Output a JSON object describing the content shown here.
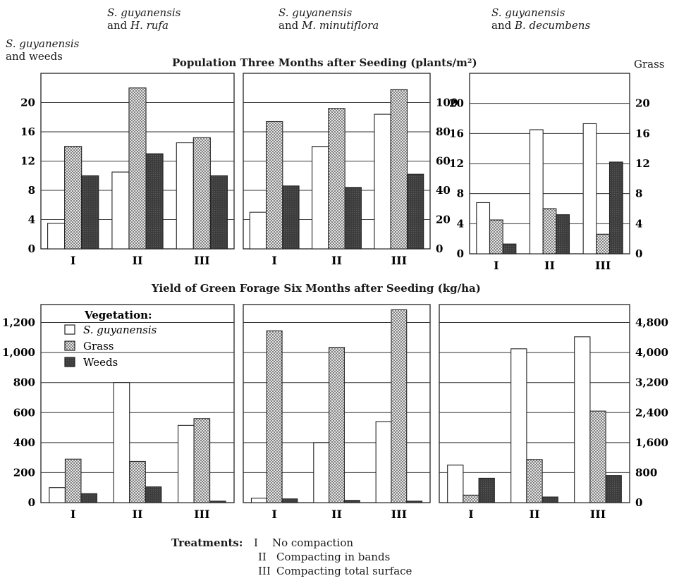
{
  "headers": {
    "panel1": {
      "line1": "S. guyanensis",
      "line2": "and weeds"
    },
    "panel2": {
      "line1": "S. guyanensis",
      "line2_pre": "and ",
      "line2_it": "H. rufa"
    },
    "panel3": {
      "line1": "S. guyanensis",
      "line2_pre": "and ",
      "line2_it": "M. minutiflora"
    },
    "panel4": {
      "line1": "S. guyanensis",
      "line2_pre": "and ",
      "line2_it": "B. decumbens"
    },
    "grass_axis_label": "Grass"
  },
  "top_title": "Population Three Months after Seeding (plants/m²)",
  "bottom_title": "Yield of Green Forage Six Months after Seeding (kg/ha)",
  "legend": {
    "title": "Vegetation:",
    "items": [
      {
        "label": "S. guyanensis",
        "pattern": "white"
      },
      {
        "label": "Grass",
        "pattern": "dotted"
      },
      {
        "label": "Weeds",
        "pattern": "dark"
      }
    ]
  },
  "treatments": {
    "label": "Treatments:",
    "items": [
      {
        "num": "I",
        "text": "No compaction"
      },
      {
        "num": "II",
        "text": "Compacting in bands"
      },
      {
        "num": "III",
        "text": "Compacting total surface"
      }
    ]
  },
  "chart_data": [
    {
      "type": "bar",
      "row": "population",
      "panel": "H. rufa",
      "categories": [
        "I",
        "II",
        "III"
      ],
      "series": [
        {
          "name": "S. guyanensis",
          "values": [
            3.5,
            10.5,
            14.5
          ]
        },
        {
          "name": "Grass",
          "values": [
            14.0,
            22.0,
            15.2
          ]
        },
        {
          "name": "Weeds",
          "values": [
            10.0,
            13.0,
            10.0
          ]
        }
      ],
      "yticks": [
        "0",
        "4",
        "8",
        "12",
        "16",
        "20"
      ],
      "ylim": [
        0,
        24
      ]
    },
    {
      "type": "bar",
      "row": "population",
      "panel": "M. minutiflora",
      "categories": [
        "I",
        "II",
        "III"
      ],
      "series": [
        {
          "name": "S. guyanensis",
          "values": [
            25,
            70,
            92
          ]
        },
        {
          "name": "Grass",
          "values": [
            87,
            96,
            109
          ]
        },
        {
          "name": "Weeds",
          "values": [
            43,
            42,
            51
          ]
        }
      ],
      "yticks": [
        "0",
        "20",
        "40",
        "60",
        "80",
        "100"
      ],
      "ylim": [
        0,
        120
      ]
    },
    {
      "type": "bar",
      "row": "population",
      "panel": "B. decumbens",
      "categories": [
        "I",
        "II",
        "III"
      ],
      "series": [
        {
          "name": "S. guyanensis",
          "values": [
            6.8,
            16.5,
            17.3
          ]
        },
        {
          "name": "Grass",
          "values": [
            4.5,
            6.0,
            2.6
          ]
        },
        {
          "name": "Weeds",
          "values": [
            1.3,
            5.2,
            12.2
          ]
        }
      ],
      "yticks": [
        "0",
        "4",
        "8",
        "12",
        "16",
        "20"
      ],
      "ylim": [
        0,
        24
      ],
      "right_yticks": [
        "0",
        "4",
        "8",
        "12",
        "16",
        "20"
      ]
    },
    {
      "type": "bar",
      "row": "yield",
      "panel": "H. rufa",
      "categories": [
        "I",
        "II",
        "III"
      ],
      "series": [
        {
          "name": "S. guyanensis",
          "values": [
            100,
            800,
            515
          ]
        },
        {
          "name": "Grass",
          "values": [
            290,
            275,
            560
          ]
        },
        {
          "name": "Weeds",
          "values": [
            60,
            105,
            10
          ]
        }
      ],
      "yticks": [
        "0",
        "200",
        "400",
        "600",
        "800",
        "1,000",
        "1,200"
      ],
      "ylim": [
        0,
        1320
      ]
    },
    {
      "type": "bar",
      "row": "yield",
      "panel": "M. minutiflora",
      "categories": [
        "I",
        "II",
        "III"
      ],
      "series": [
        {
          "name": "S. guyanensis",
          "values": [
            30,
            400,
            540
          ]
        },
        {
          "name": "Grass",
          "values": [
            1145,
            1035,
            1285
          ]
        },
        {
          "name": "Weeds",
          "values": [
            25,
            15,
            10
          ]
        }
      ],
      "ylim": [
        0,
        1320
      ]
    },
    {
      "type": "bar",
      "row": "yield",
      "panel": "B. decumbens",
      "categories": [
        "I",
        "II",
        "III"
      ],
      "series": [
        {
          "name": "S. guyanensis",
          "values": [
            1000,
            4100,
            4420
          ]
        },
        {
          "name": "Grass",
          "values": [
            200,
            1150,
            2440
          ]
        },
        {
          "name": "Weeds",
          "values": [
            650,
            150,
            720
          ]
        }
      ],
      "yticks": [
        "0",
        "800",
        "1,600",
        "2,400",
        "3,200",
        "4,000",
        "4,800"
      ],
      "ylim": [
        0,
        5280
      ]
    }
  ]
}
